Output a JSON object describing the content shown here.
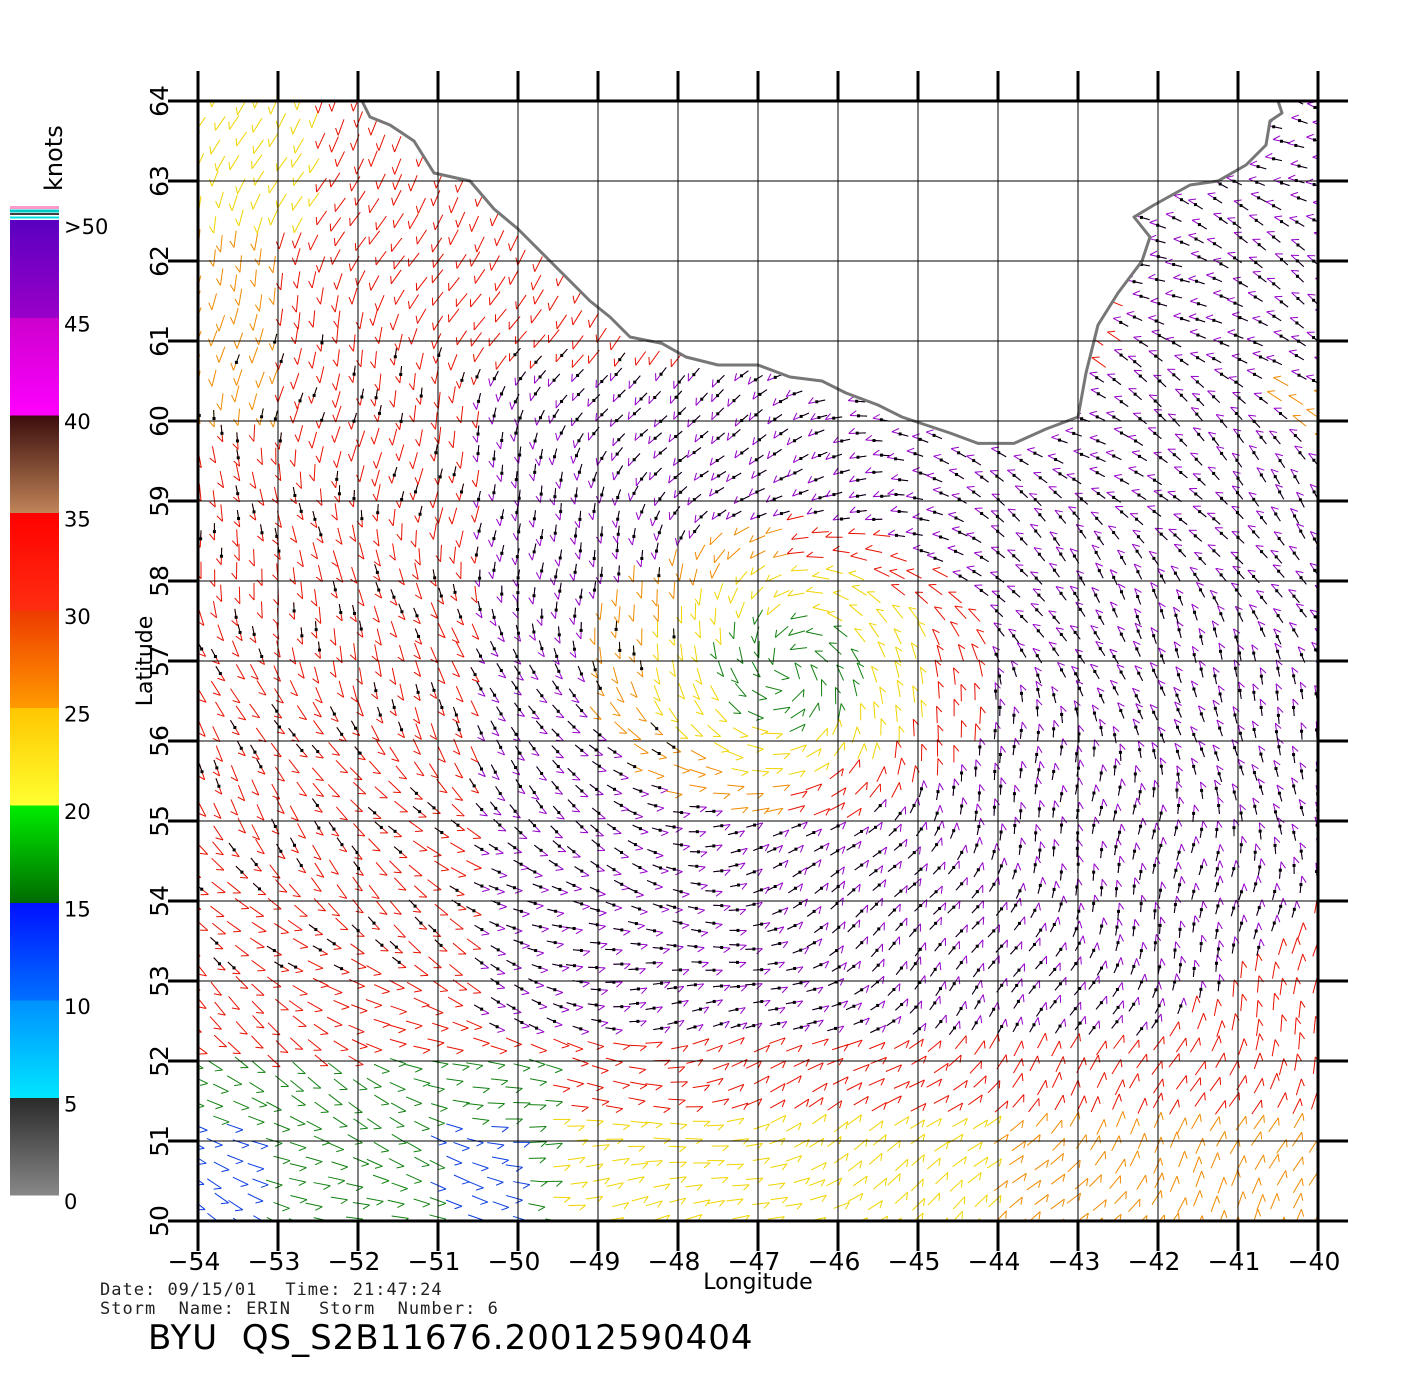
{
  "map": {
    "lon_range": [
      -54,
      -40
    ],
    "lat_range": [
      50,
      64
    ],
    "xlabel": "Longitude",
    "ylabel": "Latitude",
    "lon_ticks": [
      "−54",
      "−53",
      "−52",
      "−51",
      "−50",
      "−49",
      "−48",
      "−47",
      "−46",
      "−45",
      "−44",
      "−43",
      "−42",
      "−41",
      "−40"
    ],
    "lat_ticks": [
      "50",
      "51",
      "52",
      "53",
      "54",
      "55",
      "56",
      "57",
      "58",
      "59",
      "60",
      "61",
      "62",
      "63",
      "64"
    ],
    "grid": true,
    "coastline_color": "#777777",
    "coastline": [
      [
        -51.95,
        64.0
      ],
      [
        -51.85,
        63.8
      ],
      [
        -51.6,
        63.7
      ],
      [
        -51.3,
        63.5
      ],
      [
        -51.05,
        63.1
      ],
      [
        -50.6,
        63.0
      ],
      [
        -50.3,
        62.65
      ],
      [
        -50.0,
        62.4
      ],
      [
        -49.8,
        62.2
      ],
      [
        -49.6,
        62.0
      ],
      [
        -49.4,
        61.8
      ],
      [
        -49.1,
        61.5
      ],
      [
        -48.85,
        61.3
      ],
      [
        -48.6,
        61.05
      ],
      [
        -48.2,
        60.97
      ],
      [
        -47.9,
        60.8
      ],
      [
        -47.5,
        60.7
      ],
      [
        -47.0,
        60.7
      ],
      [
        -46.6,
        60.55
      ],
      [
        -46.2,
        60.5
      ],
      [
        -45.9,
        60.35
      ],
      [
        -45.5,
        60.2
      ],
      [
        -45.2,
        60.05
      ],
      [
        -44.9,
        59.95
      ],
      [
        -44.6,
        59.85
      ],
      [
        -44.25,
        59.72
      ],
      [
        -43.8,
        59.72
      ],
      [
        -43.4,
        59.9
      ],
      [
        -43.0,
        60.05
      ],
      [
        -42.9,
        60.6
      ],
      [
        -42.75,
        61.2
      ],
      [
        -42.5,
        61.6
      ],
      [
        -42.2,
        62.0
      ],
      [
        -42.1,
        62.3
      ],
      [
        -42.3,
        62.55
      ],
      [
        -42.05,
        62.7
      ],
      [
        -41.6,
        62.95
      ],
      [
        -41.25,
        63.0
      ],
      [
        -40.9,
        63.2
      ],
      [
        -40.65,
        63.45
      ],
      [
        -40.6,
        63.75
      ],
      [
        -40.45,
        63.85
      ],
      [
        -40.5,
        64.0
      ]
    ]
  },
  "legend": {
    "title": "knots",
    "tick_labels": [
      ">50",
      "45",
      "40",
      "35",
      "30",
      "25",
      "20",
      "15",
      "10",
      "5",
      "0"
    ],
    "stops": [
      {
        "from": 0,
        "to": 5,
        "top": "#2a2a2a",
        "bottom": "#888888"
      },
      {
        "from": 5,
        "to": 10,
        "top": "#0090ff",
        "bottom": "#00e6ff"
      },
      {
        "from": 10,
        "to": 15,
        "top": "#0010ff",
        "bottom": "#0070ff"
      },
      {
        "from": 15,
        "to": 20,
        "top": "#00ee00",
        "bottom": "#006a00"
      },
      {
        "from": 20,
        "to": 25,
        "top": "#ffc600",
        "bottom": "#ffff30"
      },
      {
        "from": 25,
        "to": 30,
        "top": "#ee3a00",
        "bottom": "#ff9a00"
      },
      {
        "from": 30,
        "to": 35,
        "top": "#ff0000",
        "bottom": "#ff2e10"
      },
      {
        "from": 35,
        "to": 40,
        "top": "#3a0c0c",
        "bottom": "#c08458"
      },
      {
        "from": 40,
        "to": 45,
        "top": "#cc00cc",
        "bottom": "#ff00ff"
      },
      {
        "from": 45,
        "to": 50,
        "top": "#5a00c0",
        "bottom": "#9a00c8"
      }
    ]
  },
  "wind_colors": {
    "calm": "#0b3ee0",
    "light": "#108010",
    "moderate": "#f0d400",
    "fresh": "#f08a00",
    "strong": "#e81000",
    "gale": "#9400c8",
    "rain_flag": "#000000"
  },
  "info": {
    "date_label": "Date:",
    "date_value": "09/15/01",
    "time_label": "Time:",
    "time_value": "21:47:24",
    "storm_name_label": "Storm  Name:",
    "storm_name_value": "ERIN",
    "storm_number_label": "Storm  Number:",
    "storm_number_value": "6"
  },
  "file_id": "BYU  QS_S2B11676.20012590404"
}
